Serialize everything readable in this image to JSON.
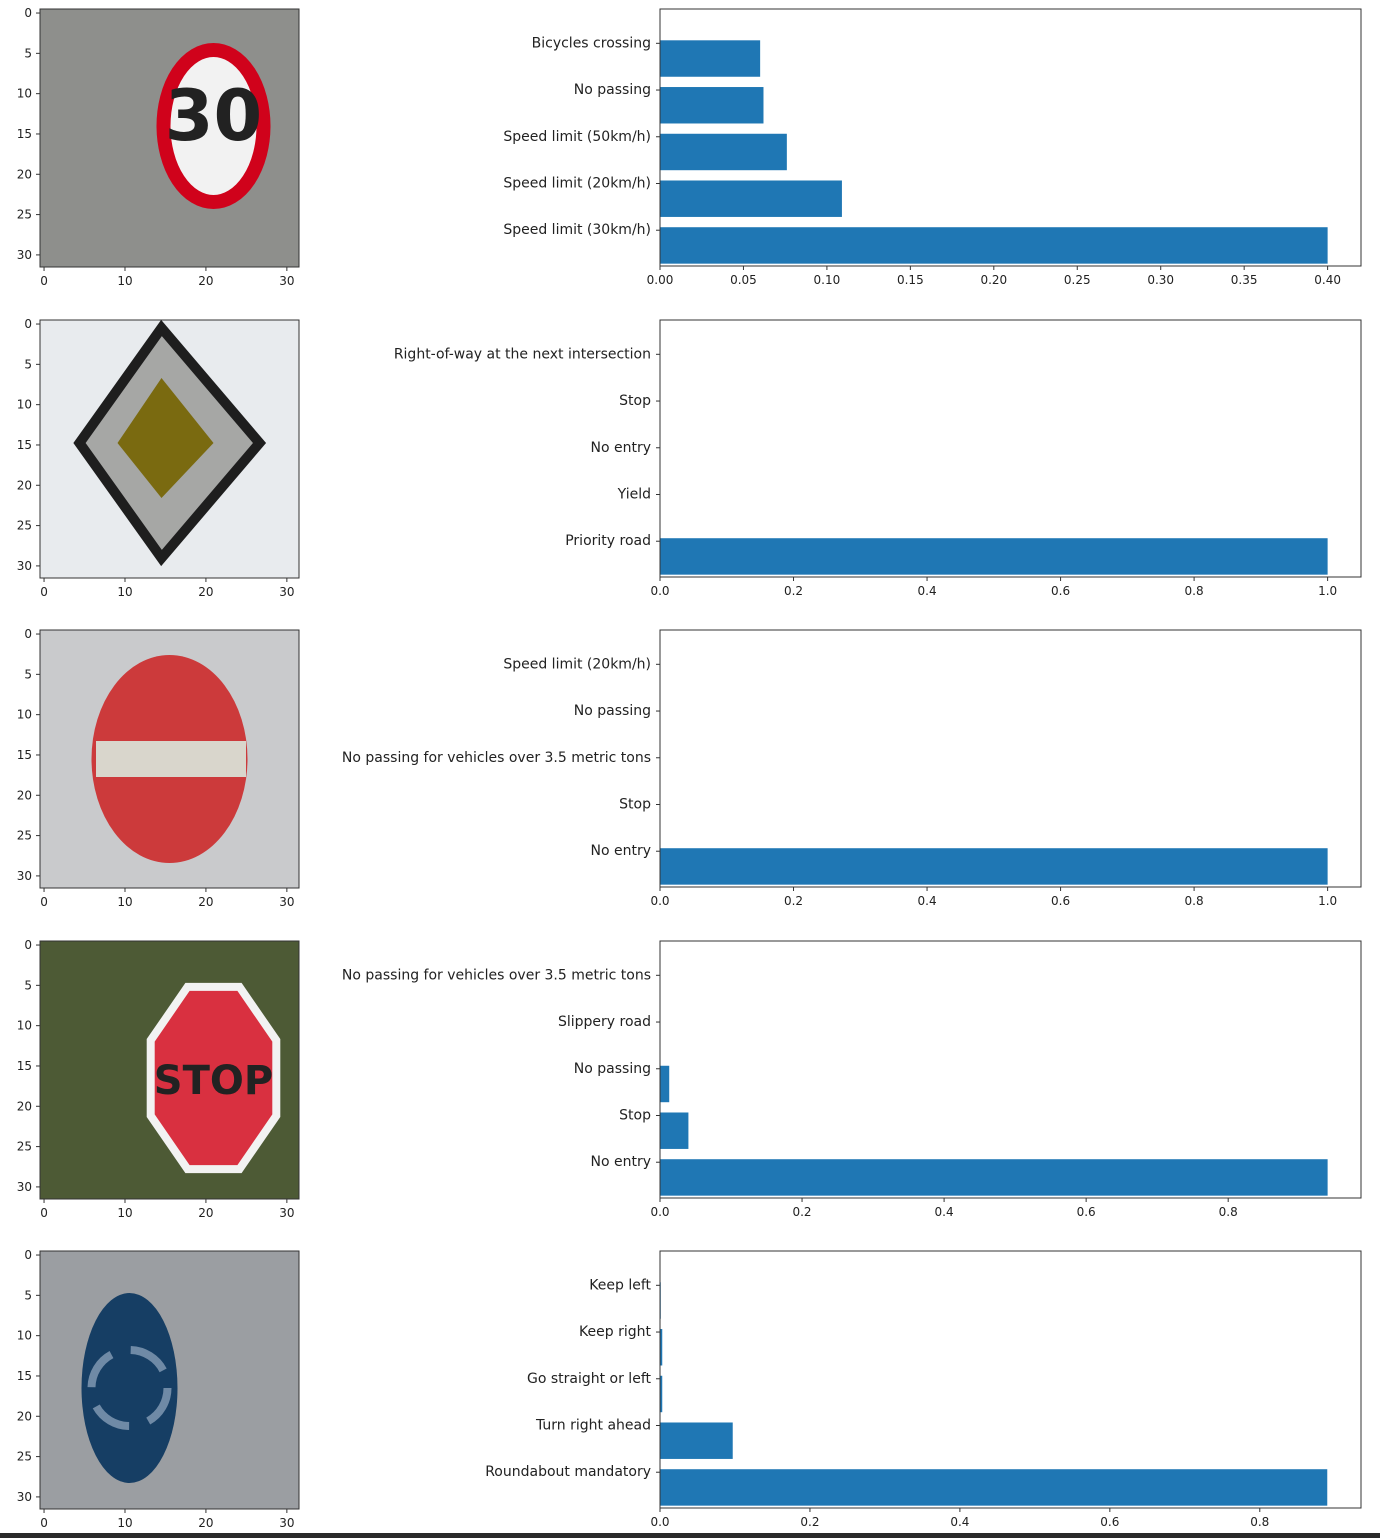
{
  "colors": {
    "bar": "#1f77b4",
    "axis": "#333333",
    "text": "#222222"
  },
  "image_axis": {
    "yticks": [
      0,
      5,
      10,
      15,
      20,
      25,
      30
    ],
    "xticks": [
      0,
      10,
      20,
      30
    ],
    "range": [
      -0.5,
      31.5
    ]
  },
  "sign_images": [
    {
      "name": "speed-limit-30-sign-image",
      "shape": "circle",
      "background": "#8e8f8c",
      "face": "#f2f2f2",
      "border": "#d0021b",
      "symbol": "30",
      "symbol_color": "#202020"
    },
    {
      "name": "priority-road-sign-image",
      "shape": "diamond",
      "background": "#e8ebee",
      "face": "#7a6a10",
      "border": "#a6a7a5",
      "symbol": "",
      "symbol_color": "#202020"
    },
    {
      "name": "no-entry-sign-image",
      "shape": "circle",
      "background": "#c9cacc",
      "face": "#cc3a3b",
      "border": "#cc3a3b",
      "symbol": "bar",
      "symbol_color": "#d9d6cc"
    },
    {
      "name": "stop-sign-image",
      "shape": "octagon",
      "background": "#4d5a35",
      "face": "#d93040",
      "border": "#f2f2f2",
      "symbol": "STOP",
      "symbol_color": "#ffffff"
    },
    {
      "name": "roundabout-sign-image",
      "shape": "circle",
      "background": "#9b9ea2",
      "face": "#163e64",
      "border": "#163e64",
      "symbol": "arrows",
      "symbol_color": "#6f8aa6"
    }
  ],
  "chart_data": [
    {
      "type": "bar",
      "orientation": "horizontal",
      "categories": [
        "Speed limit (30km/h)",
        "Speed limit (20km/h)",
        "Speed limit (50km/h)",
        "No passing",
        "Bicycles crossing"
      ],
      "values": [
        0.4,
        0.109,
        0.076,
        0.062,
        0.06
      ],
      "xlim": [
        0,
        0.42
      ],
      "xticks": [
        0,
        0.05,
        0.1,
        0.15,
        0.2,
        0.25,
        0.3,
        0.35,
        0.4
      ],
      "xtick_labels": [
        "0.00",
        "0.05",
        "0.10",
        "0.15",
        "0.20",
        "0.25",
        "0.30",
        "0.35",
        "0.40"
      ],
      "grid": false
    },
    {
      "type": "bar",
      "orientation": "horizontal",
      "categories": [
        "Priority road",
        "Yield",
        "No entry",
        "Stop",
        "Right-of-way at the next intersection"
      ],
      "values": [
        1.0,
        0.0,
        0.0,
        0.0,
        0.0
      ],
      "xlim": [
        0,
        1.05
      ],
      "xticks": [
        0,
        0.2,
        0.4,
        0.6,
        0.8,
        1.0
      ],
      "xtick_labels": [
        "0.0",
        "0.2",
        "0.4",
        "0.6",
        "0.8",
        "1.0"
      ],
      "grid": false
    },
    {
      "type": "bar",
      "orientation": "horizontal",
      "categories": [
        "No entry",
        "Stop",
        "No passing for vehicles over 3.5 metric tons",
        "No passing",
        "Speed limit (20km/h)"
      ],
      "values": [
        1.0,
        0.0,
        0.0,
        0.0,
        0.0
      ],
      "xlim": [
        0,
        1.05
      ],
      "xticks": [
        0,
        0.2,
        0.4,
        0.6,
        0.8,
        1.0
      ],
      "xtick_labels": [
        "0.0",
        "0.2",
        "0.4",
        "0.6",
        "0.8",
        "1.0"
      ],
      "grid": false
    },
    {
      "type": "bar",
      "orientation": "horizontal",
      "categories": [
        "No entry",
        "Stop",
        "No passing",
        "Slippery road",
        "No passing for vehicles over 3.5 metric tons"
      ],
      "values": [
        0.94,
        0.04,
        0.013,
        0.0,
        0.0
      ],
      "xlim": [
        0,
        0.987
      ],
      "xticks": [
        0,
        0.2,
        0.4,
        0.6,
        0.8
      ],
      "xtick_labels": [
        "0.0",
        "0.2",
        "0.4",
        "0.6",
        "0.8"
      ],
      "grid": false
    },
    {
      "type": "bar",
      "orientation": "horizontal",
      "categories": [
        "Roundabout mandatory",
        "Turn right ahead",
        "Go straight or left",
        "Keep right",
        "Keep left"
      ],
      "values": [
        0.89,
        0.097,
        0.003,
        0.003,
        0.001
      ],
      "xlim": [
        0,
        0.935
      ],
      "xticks": [
        0,
        0.2,
        0.4,
        0.6,
        0.8
      ],
      "xtick_labels": [
        "0.0",
        "0.2",
        "0.4",
        "0.6",
        "0.8"
      ],
      "grid": false
    }
  ]
}
